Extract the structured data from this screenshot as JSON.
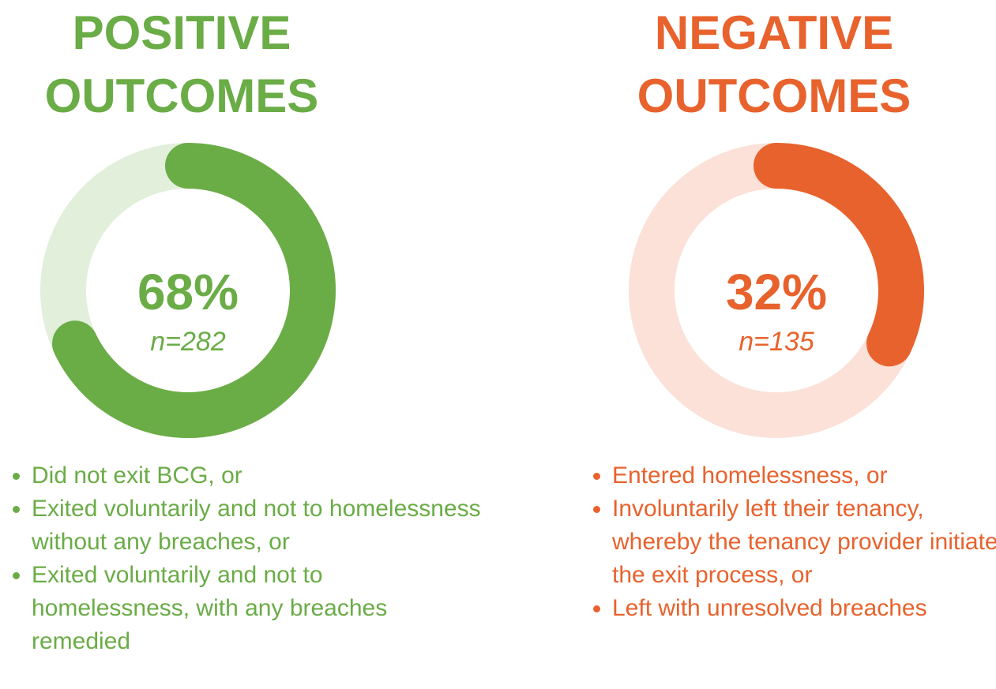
{
  "chart_data": [
    {
      "type": "donut",
      "title": "POSITIVE OUTCOMES",
      "values": [
        68
      ],
      "value_labels": [
        "68%"
      ],
      "annotation": "n=282",
      "color": "#6aac46",
      "track_color": "#e1efdb",
      "bullets": [
        "Did not exit BCG, or",
        "Exited voluntarily and not to homelessness without any breaches, or",
        "Exited voluntarily and not to homelessness, with any breaches remedied"
      ]
    },
    {
      "type": "donut",
      "title": "NEGATIVE OUTCOMES",
      "values": [
        32
      ],
      "value_labels": [
        "32%"
      ],
      "annotation": "n=135",
      "color": "#e8622d",
      "track_color": "#fbe1d8",
      "bullets": [
        "Entered homelessness, or",
        "Involuntarily left their tenancy, whereby the tenancy provider initiated the exit process, or",
        "Left with unresolved breaches"
      ]
    }
  ]
}
